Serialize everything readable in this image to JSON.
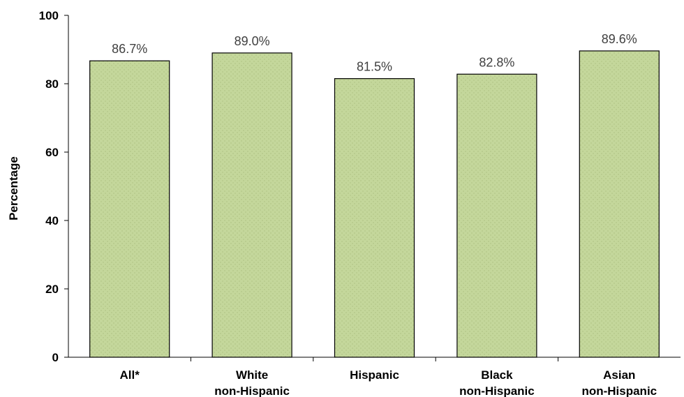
{
  "chart_data": {
    "type": "bar",
    "title": "",
    "xlabel": "",
    "ylabel": "Percentage",
    "ylim": [
      0,
      100
    ],
    "yticks": [
      0,
      20,
      40,
      60,
      80,
      100
    ],
    "grid": false,
    "categories": [
      [
        "All*"
      ],
      [
        "White",
        "non-Hispanic"
      ],
      [
        "Hispanic"
      ],
      [
        "Black",
        "non-Hispanic"
      ],
      [
        "Asian",
        "non-Hispanic"
      ]
    ],
    "values": [
      86.7,
      89.0,
      81.5,
      82.8,
      89.6
    ],
    "data_labels": [
      "86.7%",
      "89.0%",
      "81.5%",
      "82.8%",
      "89.6%"
    ],
    "colors": {
      "bar_fill": "#c4d79b",
      "bar_stipple": "#9fb476",
      "bar_stroke": "#000000",
      "axis": "#000000",
      "data_label": "#404040"
    }
  }
}
